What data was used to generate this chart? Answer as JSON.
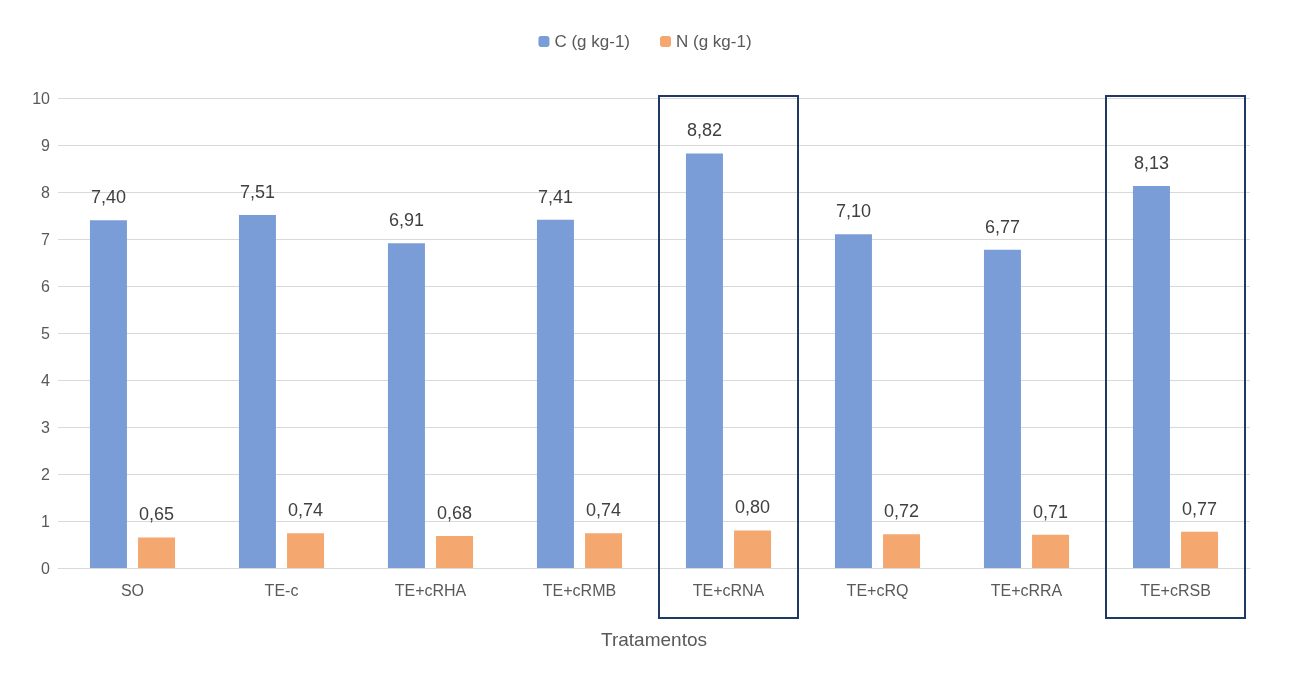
{
  "chart_data": {
    "type": "bar",
    "xlabel": "Tratamentos",
    "categories": [
      "SO",
      "TE-c",
      "TE+cRHA",
      "TE+cRMB",
      "TE+cRNA",
      "TE+cRQ",
      "TE+cRRA",
      "TE+cRSB"
    ],
    "series": [
      {
        "name": "C (g kg-1)",
        "color": "#7a9dd8",
        "values": [
          7.4,
          7.51,
          6.91,
          7.41,
          8.82,
          7.1,
          6.77,
          8.13
        ],
        "value_labels": [
          "7,40",
          "7,51",
          "6,91",
          "7,41",
          "8,82",
          "7,10",
          "6,77",
          "8,13"
        ]
      },
      {
        "name": "N (g kg-1)",
        "color": "#f4a76e",
        "values": [
          0.65,
          0.74,
          0.68,
          0.74,
          0.8,
          0.72,
          0.71,
          0.77
        ],
        "value_labels": [
          "0,65",
          "0,74",
          "0,68",
          "0,74",
          "0,80",
          "0,72",
          "0,71",
          "0,77"
        ]
      }
    ],
    "ylim": [
      0,
      10
    ],
    "yticks": [
      0,
      1,
      2,
      3,
      4,
      5,
      6,
      7,
      8,
      9,
      10
    ],
    "grid": "y",
    "legend": "top"
  }
}
